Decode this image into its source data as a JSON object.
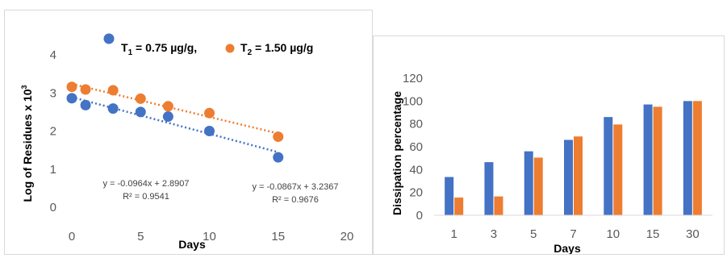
{
  "chart_data": [
    {
      "type": "scatter",
      "xlabel": "Days",
      "ylabel": "Log of Residues x 10",
      "ylabel_sup": "3",
      "xlim": [
        0,
        20
      ],
      "ylim": [
        0,
        4
      ],
      "xticks": [
        "0",
        "5",
        "10",
        "15",
        "20"
      ],
      "yticks": [
        "0",
        "1",
        "2",
        "3",
        "4"
      ],
      "grid": false,
      "legend": {
        "position": "top",
        "items": [
          {
            "base": "T",
            "sub": "1",
            "rest": " = 0.75 µg/g,",
            "color": "#4472c4"
          },
          {
            "base": "T",
            "sub": "2",
            "rest": " = 1.50 µg/g",
            "color": "#ed7d31"
          }
        ]
      },
      "series": [
        {
          "color": "#4472c4",
          "x": [
            0,
            1,
            3,
            5,
            7,
            10,
            15
          ],
          "y": [
            2.86,
            2.68,
            2.59,
            2.5,
            2.38,
            2.0,
            1.31
          ],
          "trendline": {
            "slope": -0.0964,
            "intercept": 2.8907,
            "equation": "y = -0.0964x + 2.8907",
            "r2": "R² = 0.9541"
          }
        },
        {
          "color": "#ed7d31",
          "x": [
            0,
            1,
            3,
            5,
            7,
            10,
            15
          ],
          "y": [
            3.16,
            3.09,
            3.07,
            2.85,
            2.65,
            2.47,
            1.85
          ],
          "trendline": {
            "slope": -0.0867,
            "intercept": 3.2367,
            "equation": "y = -0.0867x + 3.2367",
            "r2": "R² = 0.9676"
          }
        }
      ]
    },
    {
      "type": "bar",
      "xlabel": "Days",
      "ylabel": "Dissipation percentage",
      "categories": [
        "1",
        "3",
        "5",
        "7",
        "10",
        "15",
        "30"
      ],
      "ylim": [
        0,
        120
      ],
      "yticks": [
        "0",
        "20",
        "40",
        "60",
        "80",
        "100",
        "120"
      ],
      "grid": false,
      "series": [
        {
          "color": "#4472c4",
          "values": [
            33.5,
            46.5,
            56,
            66,
            86,
            97,
            100
          ]
        },
        {
          "color": "#ed7d31",
          "values": [
            15.5,
            16.5,
            50.5,
            69,
            79.5,
            95,
            100
          ]
        }
      ]
    }
  ]
}
